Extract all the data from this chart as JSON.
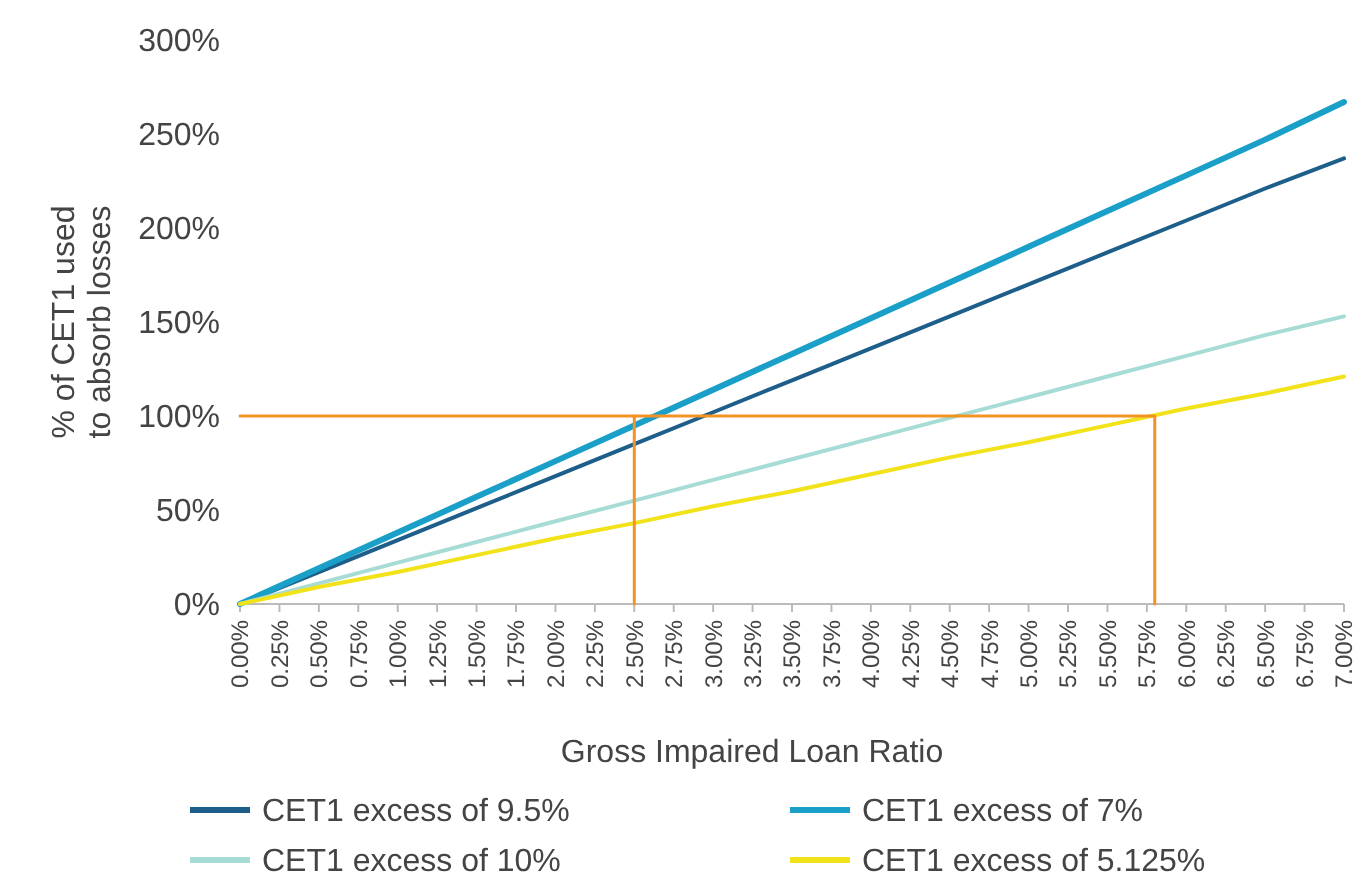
{
  "chart_data": {
    "type": "line",
    "xlabel": "Gross Impaired Loan Ratio",
    "ylabel": "% of CET1 used to absorb losses",
    "xlim": [
      0,
      7
    ],
    "xticks": [
      {
        "value": 0,
        "label": "0.00%"
      },
      {
        "value": 0.25,
        "label": "0.25%"
      },
      {
        "value": 0.5,
        "label": "0.50%"
      },
      {
        "value": 0.75,
        "label": "0.75%"
      },
      {
        "value": 1,
        "label": "1.00%"
      },
      {
        "value": 1.25,
        "label": "1.25%"
      },
      {
        "value": 1.5,
        "label": "1.50%"
      },
      {
        "value": 1.75,
        "label": "1.75%"
      },
      {
        "value": 2,
        "label": "2.00%"
      },
      {
        "value": 2.25,
        "label": "2.25%"
      },
      {
        "value": 2.5,
        "label": "2.50%"
      },
      {
        "value": 2.75,
        "label": "2.75%"
      },
      {
        "value": 3,
        "label": "3.00%"
      },
      {
        "value": 3.25,
        "label": "3.25%"
      },
      {
        "value": 3.5,
        "label": "3.50%"
      },
      {
        "value": 3.75,
        "label": "3.75%"
      },
      {
        "value": 4,
        "label": "4.00%"
      },
      {
        "value": 4.25,
        "label": "4.25%"
      },
      {
        "value": 4.5,
        "label": "4.50%"
      },
      {
        "value": 4.75,
        "label": "4.75%"
      },
      {
        "value": 5,
        "label": "5.00%"
      },
      {
        "value": 5.25,
        "label": "5.25%"
      },
      {
        "value": 5.5,
        "label": "5.50%"
      },
      {
        "value": 5.75,
        "label": "5.75%"
      },
      {
        "value": 6,
        "label": "6.00%"
      },
      {
        "value": 6.25,
        "label": "6.25%"
      },
      {
        "value": 6.5,
        "label": "6.50%"
      },
      {
        "value": 6.75,
        "label": "6.75%"
      },
      {
        "value": 7,
        "label": "7.00%"
      }
    ],
    "ylim": [
      0,
      300
    ],
    "yticks": [
      {
        "value": 0,
        "label": "0%"
      },
      {
        "value": 50,
        "label": "50%"
      },
      {
        "value": 100,
        "label": "100%"
      },
      {
        "value": 150,
        "label": "150%"
      },
      {
        "value": 200,
        "label": "200%"
      },
      {
        "value": 250,
        "label": "250%"
      },
      {
        "value": 300,
        "label": "300%"
      }
    ],
    "x": [
      0,
      0.5,
      1,
      1.5,
      2,
      2.5,
      3,
      3.5,
      4,
      4.5,
      5,
      5.5,
      6,
      6.5,
      7
    ],
    "grid": false,
    "legend": "bottom",
    "marker": "none",
    "line_style": "solid",
    "series": [
      {
        "name": "CET1 excess of 9.5%",
        "color": "#1d5f8a",
        "values": [
          0,
          17,
          34,
          51,
          68,
          85,
          102,
          119,
          136,
          153,
          170,
          187,
          204,
          221,
          237
        ]
      },
      {
        "name": "CET1 excess of 7%",
        "color": "#1aa0c8",
        "values": [
          0,
          19,
          38,
          57,
          76,
          95,
          114,
          133,
          152,
          171,
          190,
          209,
          228,
          247,
          267
        ]
      },
      {
        "name": "CET1 excess of 10%",
        "color": "#a6dcd5",
        "values": [
          0,
          11,
          22,
          33,
          44,
          55,
          66,
          77,
          88,
          99,
          110,
          121,
          132,
          143,
          153
        ]
      },
      {
        "name": "CET1 excess of 5.125%",
        "color": "#f2e21a",
        "values": [
          0,
          9,
          17,
          26,
          35,
          43,
          52,
          60,
          69,
          78,
          86,
          95,
          104,
          112,
          121
        ]
      },
      {
        "color": "#f39325",
        "x": [
          0,
          5.8,
          5.8
        ],
        "values": [
          100,
          100,
          0
        ]
      },
      {
        "color": "#f39325",
        "x": [
          2.5,
          2.5
        ],
        "values": [
          0,
          100
        ]
      }
    ]
  }
}
